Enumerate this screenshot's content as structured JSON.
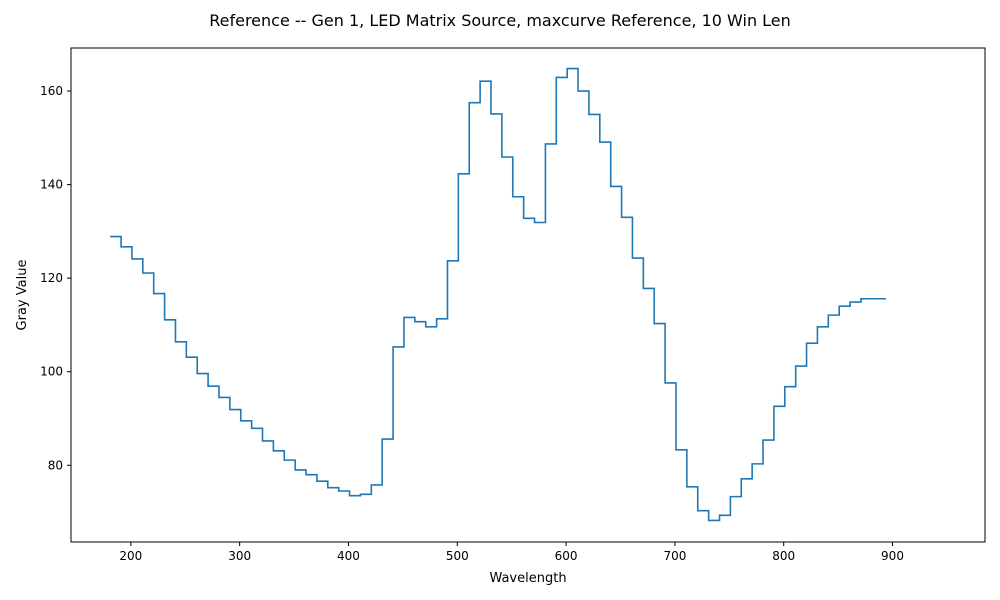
{
  "chart_data": {
    "type": "line",
    "drawstyle": "steps",
    "title": "Reference -- Gen 1, LED Matrix Source, maxcurve Reference, 10 Win Len",
    "xlabel": "Wavelength",
    "ylabel": "Gray Value",
    "xlim": [
      145,
      985
    ],
    "ylim": [
      63.6,
      169.2
    ],
    "xticks": [
      200,
      300,
      400,
      500,
      600,
      700,
      800,
      900
    ],
    "yticks": [
      80,
      100,
      120,
      140,
      160
    ],
    "grid": false,
    "color": "#1f77b4",
    "series": [
      {
        "x": [
          181,
          191,
          201,
          211,
          221,
          231,
          241,
          251,
          261,
          271,
          281,
          291,
          301,
          311,
          321,
          331,
          341,
          351,
          361,
          371,
          381,
          391,
          401,
          411,
          421,
          431,
          441,
          451,
          461,
          471,
          481,
          491,
          501,
          511,
          521,
          531,
          541,
          551,
          561,
          571,
          581,
          591,
          601,
          611,
          621,
          631,
          641,
          651,
          661,
          671,
          681,
          691,
          701,
          711,
          721,
          731,
          741,
          751,
          761,
          771,
          781,
          791,
          801,
          811,
          821,
          831,
          841,
          851,
          861,
          871,
          881,
          894
        ],
        "y": [
          128.9,
          126.7,
          124.1,
          121.1,
          116.7,
          111.1,
          106.4,
          103.1,
          99.6,
          96.9,
          94.5,
          91.9,
          89.5,
          87.9,
          85.2,
          83.1,
          81.1,
          79.0,
          78.0,
          76.6,
          75.2,
          74.5,
          73.5,
          73.8,
          75.8,
          85.6,
          105.3,
          111.6,
          110.7,
          109.6,
          111.3,
          123.7,
          142.3,
          157.5,
          162.1,
          155.1,
          145.9,
          137.4,
          132.8,
          131.9,
          148.7,
          162.9,
          164.8,
          160.0,
          155.0,
          149.1,
          139.6,
          133.0,
          124.3,
          117.8,
          110.3,
          97.6,
          83.3,
          75.4,
          70.3,
          68.2,
          69.3,
          73.3,
          77.1,
          80.3,
          85.4,
          92.6,
          96.8,
          101.2,
          106.1,
          109.6,
          112.1,
          114.0,
          114.9,
          115.6,
          115.6,
          115.6
        ]
      }
    ]
  }
}
